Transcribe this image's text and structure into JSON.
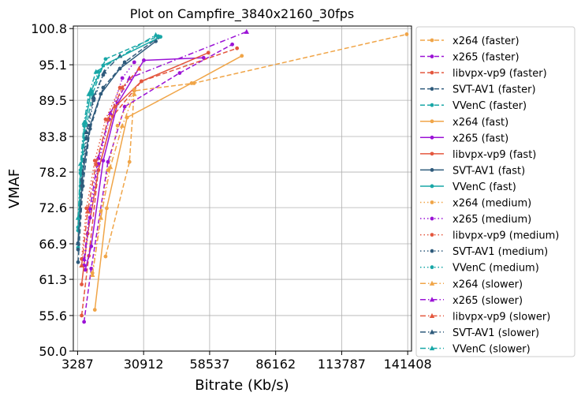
{
  "chart_data": {
    "type": "line",
    "title": "Plot on Campfire_3840x2160_30fps",
    "xlabel": "Bitrate (Kb/s)",
    "ylabel": "VMAF",
    "xlim": [
      1500,
      143000
    ],
    "ylim": [
      50.0,
      101.2
    ],
    "xticks": [
      3287,
      30912,
      58537,
      86162,
      113787,
      141408
    ],
    "yticks": [
      50.0,
      55.6,
      61.3,
      66.9,
      72.6,
      78.2,
      83.8,
      89.5,
      95.1,
      100.8
    ],
    "grid": true,
    "legend_position": "outside-right",
    "colors": {
      "x264": "#f0a548",
      "x265": "#9b13d6",
      "libvpx-vp9": "#e4573e",
      "SVT-AV1": "#2f5b7c",
      "VVenC": "#19a7a7"
    },
    "series": [
      {
        "name": "x264 (faster)",
        "codec": "x264",
        "preset": "faster",
        "dash": "dashed",
        "marker": "circle",
        "x": [
          15000,
          25000,
          27000,
          52000,
          141000
        ],
        "y": [
          64.9,
          79.8,
          91.0,
          92.2,
          99.9
        ]
      },
      {
        "name": "x265 (faster)",
        "codec": "x265",
        "preset": "faster",
        "dash": "dashed",
        "marker": "circle",
        "x": [
          6000,
          9000,
          16000,
          23000,
          46000,
          68000
        ],
        "y": [
          54.6,
          63.0,
          79.8,
          88.5,
          93.8,
          98.3
        ]
      },
      {
        "name": "libvpx-vp9 (faster)",
        "codec": "libvpx-vp9",
        "preset": "faster",
        "dash": "dashed",
        "marker": "circle",
        "x": [
          5000,
          8000,
          12000,
          18000,
          30000,
          70000
        ],
        "y": [
          55.6,
          65.0,
          78.5,
          87.0,
          92.5,
          97.7
        ]
      },
      {
        "name": "SVT-AV1 (faster)",
        "codec": "SVT-AV1",
        "preset": "faster",
        "dash": "dashed",
        "marker": "circle",
        "x": [
          3500,
          5500,
          8500,
          14000,
          23000,
          37000
        ],
        "y": [
          64.0,
          76.0,
          85.0,
          91.5,
          95.5,
          99.4
        ]
      },
      {
        "name": "VVenC (faster)",
        "codec": "VVenC",
        "preset": "faster",
        "dash": "dashed",
        "marker": "circle",
        "x": [
          3500,
          4500,
          6500,
          9500,
          15000,
          37000
        ],
        "y": [
          66.3,
          76.0,
          84.5,
          90.5,
          96.0,
          99.6
        ]
      },
      {
        "name": "x264 (fast)",
        "codec": "x264",
        "preset": "fast",
        "dash": "solid",
        "marker": "circle",
        "x": [
          10500,
          15500,
          24000,
          51000,
          72000
        ],
        "y": [
          56.5,
          72.5,
          86.8,
          92.2,
          96.5
        ]
      },
      {
        "name": "x265 (fast)",
        "codec": "x265",
        "preset": "fast",
        "dash": "solid",
        "marker": "circle",
        "x": [
          6500,
          9000,
          14000,
          20000,
          31000,
          56000
        ],
        "y": [
          62.8,
          66.5,
          80.0,
          89.0,
          95.8,
          96.2
        ]
      },
      {
        "name": "libvpx-vp9 (fast)",
        "codec": "libvpx-vp9",
        "preset": "fast",
        "dash": "solid",
        "marker": "circle",
        "x": [
          5000,
          7500,
          12000,
          19000,
          30000,
          58000
        ],
        "y": [
          60.5,
          68.5,
          78.5,
          88.5,
          92.5,
          97.0
        ]
      },
      {
        "name": "SVT-AV1 (fast)",
        "codec": "SVT-AV1",
        "preset": "fast",
        "dash": "solid",
        "marker": "circle",
        "x": [
          3500,
          5500,
          8500,
          13000,
          21000,
          36000
        ],
        "y": [
          67.0,
          78.0,
          85.5,
          90.5,
          94.5,
          98.8
        ]
      },
      {
        "name": "VVenC (fast)",
        "codec": "VVenC",
        "preset": "fast",
        "dash": "solid",
        "marker": "circle",
        "x": [
          3500,
          4500,
          6500,
          9000,
          14000,
          38000
        ],
        "y": [
          69.0,
          78.0,
          86.0,
          91.0,
          95.0,
          99.5
        ]
      },
      {
        "name": "x264 (medium)",
        "codec": "x264",
        "preset": "medium",
        "dash": "dotted",
        "marker": "circle",
        "x": [
          9500,
          13000,
          16000,
          20000,
          27000
        ],
        "y": [
          62.3,
          72.0,
          78.5,
          85.5,
          91.2
        ]
      },
      {
        "name": "x265 (medium)",
        "codec": "x265",
        "preset": "medium",
        "dash": "dotted",
        "marker": "circle",
        "x": [
          6000,
          8500,
          12000,
          16500,
          22000,
          27000
        ],
        "y": [
          63.5,
          71.0,
          79.5,
          86.5,
          93.0,
          95.5
        ]
      },
      {
        "name": "libvpx-vp9 (medium)",
        "codec": "libvpx-vp9",
        "preset": "medium",
        "dash": "dotted",
        "marker": "circle",
        "x": [
          5000,
          7000,
          10500,
          15000,
          21000
        ],
        "y": [
          64.5,
          72.5,
          80.0,
          86.5,
          91.5
        ]
      },
      {
        "name": "SVT-AV1 (medium)",
        "codec": "SVT-AV1",
        "preset": "medium",
        "dash": "dotted",
        "marker": "circle",
        "x": [
          3500,
          5000,
          7000,
          10000,
          14000
        ],
        "y": [
          66.0,
          76.0,
          83.5,
          89.5,
          93.5
        ]
      },
      {
        "name": "VVenC (medium)",
        "codec": "VVenC",
        "preset": "medium",
        "dash": "dotted",
        "marker": "circle",
        "x": [
          3500,
          4500,
          6000,
          8500,
          12000
        ],
        "y": [
          69.5,
          78.5,
          85.5,
          90.5,
          94.0
        ]
      },
      {
        "name": "x264 (slower)",
        "codec": "x264",
        "preset": "slower",
        "dash": "dashdot",
        "marker": "triangle",
        "x": [
          9500,
          13000,
          17000,
          22000,
          27000
        ],
        "y": [
          62.0,
          71.0,
          79.0,
          85.5,
          90.5
        ]
      },
      {
        "name": "x265 (slower)",
        "codec": "x265",
        "preset": "slower",
        "dash": "dashdot",
        "marker": "triangle",
        "x": [
          6000,
          8500,
          12000,
          17000,
          25000,
          74000
        ],
        "y": [
          64.5,
          72.5,
          80.5,
          87.5,
          93.0,
          100.3
        ]
      },
      {
        "name": "libvpx-vp9 (slower)",
        "codec": "libvpx-vp9",
        "preset": "slower",
        "dash": "dashdot",
        "marker": "triangle",
        "x": [
          5000,
          7500,
          11000,
          16000,
          22000,
          29000
        ],
        "y": [
          63.5,
          72.0,
          79.5,
          86.5,
          91.5,
          94.5
        ]
      },
      {
        "name": "SVT-AV1 (slower)",
        "codec": "SVT-AV1",
        "preset": "slower",
        "dash": "dashdot",
        "marker": "triangle",
        "x": [
          3500,
          5000,
          7000,
          10000,
          14500,
          21000
        ],
        "y": [
          67.0,
          77.0,
          84.5,
          90.0,
          94.0,
          96.5
        ]
      },
      {
        "name": "VVenC (slower)",
        "codec": "VVenC",
        "preset": "slower",
        "dash": "dashdot",
        "marker": "triangle",
        "x": [
          3500,
          4500,
          6000,
          8000,
          11000,
          36000
        ],
        "y": [
          71.0,
          79.5,
          86.0,
          90.5,
          94.0,
          99.8
        ]
      }
    ]
  }
}
